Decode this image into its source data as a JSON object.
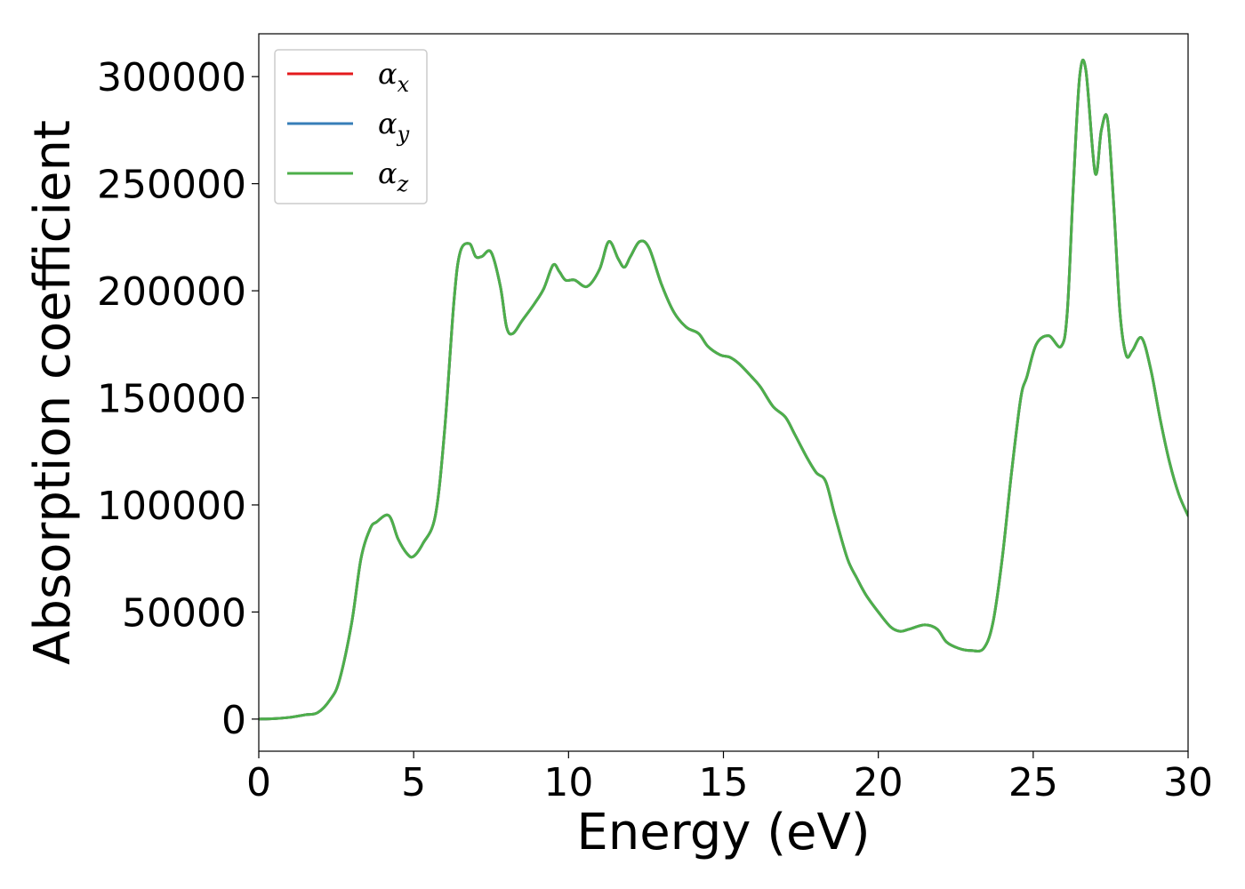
{
  "chart_data": {
    "type": "line",
    "xlabel": "Energy (eV)",
    "ylabel": "Absorption coefficient",
    "xlim": [
      0,
      30
    ],
    "ylim": [
      -15000,
      320000
    ],
    "xticks": [
      0,
      5,
      10,
      15,
      20,
      25,
      30
    ],
    "yticks": [
      0,
      50000,
      100000,
      150000,
      200000,
      250000,
      300000
    ],
    "grid": false,
    "legend": {
      "position": "top-left"
    },
    "x": [
      0,
      0.5,
      1,
      1.5,
      1.9,
      2.3,
      2.6,
      3.0,
      3.3,
      3.6,
      3.8,
      4.2,
      4.5,
      4.8,
      5.0,
      5.3,
      5.7,
      6.0,
      6.3,
      6.5,
      6.8,
      7.0,
      7.2,
      7.5,
      7.8,
      8.0,
      8.2,
      8.5,
      8.9,
      9.2,
      9.5,
      9.7,
      9.9,
      10.2,
      10.6,
      11.0,
      11.3,
      11.6,
      11.8,
      12.0,
      12.3,
      12.6,
      13.0,
      13.4,
      13.8,
      14.2,
      14.5,
      14.9,
      15.2,
      15.5,
      15.9,
      16.2,
      16.6,
      17.0,
      17.3,
      17.7,
      18.0,
      18.3,
      18.6,
      19.0,
      19.3,
      19.6,
      20.0,
      20.4,
      20.7,
      21.0,
      21.5,
      21.9,
      22.2,
      22.6,
      23.0,
      23.4,
      23.7,
      24.0,
      24.3,
      24.6,
      24.8,
      25.1,
      25.5,
      25.9,
      26.1,
      26.3,
      26.5,
      26.7,
      27.0,
      27.2,
      27.4,
      27.6,
      27.8,
      28.0,
      28.2,
      28.5,
      28.8,
      29.1,
      29.4,
      29.7,
      30.0
    ],
    "series": [
      {
        "name": "α_x",
        "color": "#e41a1c",
        "values": [
          0,
          200,
          800,
          2000,
          3000,
          9000,
          18000,
          45000,
          75000,
          89000,
          92000,
          95000,
          84000,
          77000,
          76000,
          82000,
          95000,
          135000,
          195000,
          218000,
          222000,
          216000,
          216000,
          218000,
          202000,
          183000,
          180000,
          186000,
          194000,
          201000,
          212000,
          209000,
          205000,
          205000,
          202000,
          210000,
          223000,
          215000,
          211000,
          216000,
          223000,
          220000,
          203000,
          190000,
          183000,
          180000,
          174000,
          170000,
          169000,
          166000,
          160000,
          155000,
          146000,
          141000,
          133000,
          122000,
          115000,
          111000,
          95000,
          75000,
          66000,
          58000,
          50000,
          43000,
          41000,
          42000,
          44000,
          42000,
          36000,
          33000,
          32000,
          33000,
          45000,
          75000,
          115000,
          150000,
          160000,
          175000,
          179000,
          174000,
          190000,
          250000,
          300000,
          303000,
          255000,
          275000,
          280000,
          240000,
          190000,
          170000,
          172000,
          178000,
          163000,
          140000,
          120000,
          105000,
          95000
        ]
      },
      {
        "name": "α_y",
        "color": "#377eb8",
        "values": [
          0,
          200,
          800,
          2000,
          3000,
          9000,
          18000,
          45000,
          75000,
          89000,
          92000,
          95000,
          84000,
          77000,
          76000,
          82000,
          95000,
          135000,
          195000,
          218000,
          222000,
          216000,
          216000,
          218000,
          202000,
          183000,
          180000,
          186000,
          194000,
          201000,
          212000,
          209000,
          205000,
          205000,
          202000,
          210000,
          223000,
          215000,
          211000,
          216000,
          223000,
          220000,
          203000,
          190000,
          183000,
          180000,
          174000,
          170000,
          169000,
          166000,
          160000,
          155000,
          146000,
          141000,
          133000,
          122000,
          115000,
          111000,
          95000,
          75000,
          66000,
          58000,
          50000,
          43000,
          41000,
          42000,
          44000,
          42000,
          36000,
          33000,
          32000,
          33000,
          45000,
          75000,
          115000,
          150000,
          160000,
          175000,
          179000,
          174000,
          190000,
          250000,
          300000,
          303000,
          255000,
          275000,
          280000,
          240000,
          190000,
          170000,
          172000,
          178000,
          163000,
          140000,
          120000,
          105000,
          95000
        ]
      },
      {
        "name": "α_z",
        "color": "#4daf4a",
        "values": [
          0,
          200,
          800,
          2000,
          3000,
          9000,
          18000,
          45000,
          75000,
          89000,
          92000,
          95000,
          84000,
          77000,
          76000,
          82000,
          95000,
          135000,
          195000,
          218000,
          222000,
          216000,
          216000,
          218000,
          202000,
          183000,
          180000,
          186000,
          194000,
          201000,
          212000,
          209000,
          205000,
          205000,
          202000,
          210000,
          223000,
          215000,
          211000,
          216000,
          223000,
          220000,
          203000,
          190000,
          183000,
          180000,
          174000,
          170000,
          169000,
          166000,
          160000,
          155000,
          146000,
          141000,
          133000,
          122000,
          115000,
          111000,
          95000,
          75000,
          66000,
          58000,
          50000,
          43000,
          41000,
          42000,
          44000,
          42000,
          36000,
          33000,
          32000,
          33000,
          45000,
          75000,
          115000,
          150000,
          160000,
          175000,
          179000,
          174000,
          190000,
          250000,
          300000,
          303000,
          255000,
          275000,
          280000,
          240000,
          190000,
          170000,
          172000,
          178000,
          163000,
          140000,
          120000,
          105000,
          95000
        ]
      }
    ]
  }
}
